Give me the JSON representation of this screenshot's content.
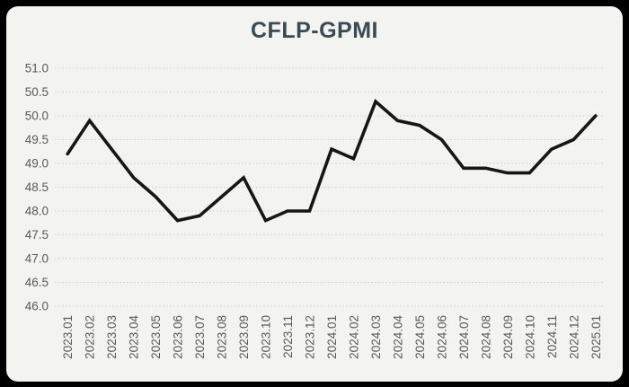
{
  "page": {
    "surround_color": "#000000",
    "card_color": "#f3f4f1"
  },
  "chart_data": {
    "type": "line",
    "title": "CFLP-GPMI",
    "title_color": "#3d4a50",
    "categories": [
      "2023.01",
      "2023.02",
      "2023.03",
      "2023.04",
      "2023.05",
      "2023.06",
      "2023.07",
      "2023.08",
      "2023.09",
      "2023.10",
      "2023.11",
      "2023.12",
      "2024.01",
      "2024.02",
      "2024.03",
      "2024.04",
      "2024.05",
      "2024.06",
      "2024.07",
      "2024.08",
      "2024.09",
      "2024.10",
      "2024.11",
      "2024.12",
      "2025.01"
    ],
    "series": [
      {
        "name": "CFLP-GPMI",
        "values": [
          49.2,
          49.9,
          49.3,
          48.7,
          48.3,
          47.8,
          47.9,
          48.3,
          48.7,
          47.8,
          48.0,
          48.0,
          49.3,
          49.1,
          50.3,
          49.9,
          49.8,
          49.5,
          48.9,
          48.9,
          48.8,
          48.8,
          49.3,
          49.5,
          50.0
        ]
      }
    ],
    "xlabel": "",
    "ylabel": "",
    "ylim": [
      46.0,
      51.0
    ],
    "ytick_step": 0.5,
    "ytick_labels": [
      "46.0",
      "46.5",
      "47.0",
      "47.5",
      "48.0",
      "48.5",
      "49.0",
      "49.5",
      "50.0",
      "50.5",
      "51.0"
    ],
    "grid": "horizontal-dotted",
    "gridline_color": "#c9ced4",
    "legend_position": "none",
    "line_color": "#161616",
    "axis_label_color": "#595959",
    "x_labels_rotated_degrees": 90
  }
}
